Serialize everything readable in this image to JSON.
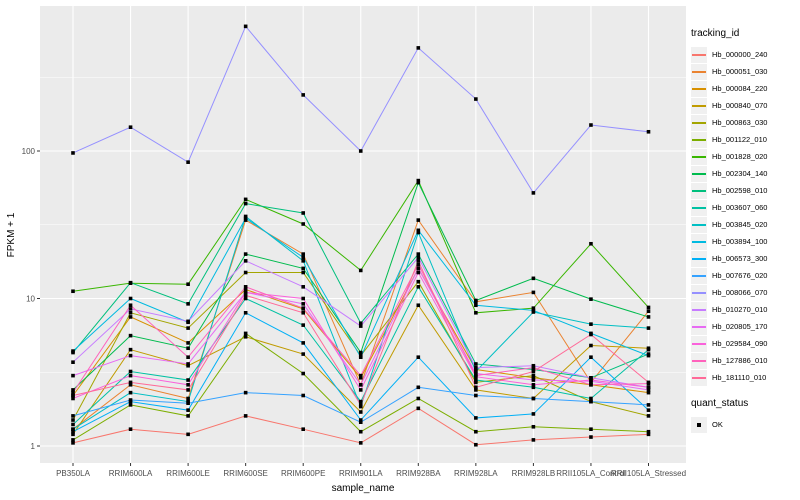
{
  "chart_data": {
    "type": "line",
    "title": "",
    "xlabel": "sample_name",
    "ylabel": "FPKM + 1",
    "y_scale": "log10",
    "y_ticks": [
      1,
      10,
      100
    ],
    "y_tick_labels": [
      "1",
      "10",
      "100"
    ],
    "y_minor_breaks": [
      3.162,
      31.62,
      316.2
    ],
    "ylim": [
      0.85,
      950
    ],
    "grid": "on",
    "legend_position": "right",
    "legend_title": "tracking_id",
    "legend2_title": "quant_status",
    "legend2_items": [
      {
        "label": "OK",
        "marker": "black-square"
      }
    ],
    "marker": "black-square",
    "colors": {
      "panel_bg": "#EBEBEB",
      "grid": "#FFFFFF",
      "marker": "#000000",
      "tick_text": "#4d4d4d",
      "axis_tick": "#333333",
      "legend_key_bg": "#F0F0F0"
    },
    "x_categories": [
      "PB350LA",
      "RRIM600LA",
      "RRIM600LE",
      "RRIM600SE",
      "RRIM600PE",
      "RRIM901LA",
      "RRIM928BA",
      "RRIM928LA",
      "RRIM928LB",
      "RRII105LA_Control",
      "RRII105LA_Stressed"
    ],
    "series": [
      {
        "name": "Hb_000000_240",
        "color": "#F8766D",
        "values": [
          1.05,
          1.3,
          1.2,
          1.6,
          1.3,
          1.05,
          1.8,
          1.02,
          1.1,
          1.15,
          1.2
        ]
      },
      {
        "name": "Hb_000051_030",
        "color": "#EA8331",
        "values": [
          1.3,
          2.6,
          2.1,
          34,
          20,
          2.6,
          34,
          9.5,
          11,
          2.7,
          8.2
        ]
      },
      {
        "name": "Hb_000084_220",
        "color": "#D89000",
        "values": [
          2.2,
          7.5,
          5.0,
          11.5,
          8.5,
          2.9,
          16,
          3.3,
          2.9,
          2.6,
          2.3
        ]
      },
      {
        "name": "Hb_000840_070",
        "color": "#C09B00",
        "values": [
          1.2,
          4.5,
          3.5,
          5.5,
          4.2,
          1.7,
          9.0,
          2.4,
          2.1,
          4.8,
          4.6
        ]
      },
      {
        "name": "Hb_000863_030",
        "color": "#A3A500",
        "values": [
          1.5,
          8.0,
          6.3,
          15,
          15,
          4.1,
          13,
          2.7,
          3.0,
          2.0,
          1.6
        ]
      },
      {
        "name": "Hb_001122_010",
        "color": "#7CAE00",
        "values": [
          1.1,
          1.9,
          1.6,
          5.8,
          3.1,
          1.25,
          2.1,
          1.25,
          1.35,
          1.3,
          1.25
        ]
      },
      {
        "name": "Hb_001828_020",
        "color": "#39B600",
        "values": [
          11.2,
          12.7,
          12.5,
          47,
          32,
          15.5,
          63,
          8.0,
          8.6,
          23.5,
          8.7
        ]
      },
      {
        "name": "Hb_002304_140",
        "color": "#00BB4E",
        "values": [
          2.4,
          5.6,
          4.6,
          20,
          16,
          4.3,
          61,
          9.7,
          13.7,
          9.9,
          7.5
        ]
      },
      {
        "name": "Hb_002598_010",
        "color": "#00BF7D",
        "values": [
          4.3,
          12.8,
          9.2,
          44,
          38,
          6.8,
          20,
          3.6,
          3.3,
          2.9,
          4.2
        ]
      },
      {
        "name": "Hb_003607_060",
        "color": "#00C1A3",
        "values": [
          1.4,
          3.2,
          2.8,
          10,
          6.6,
          2.0,
          12,
          2.8,
          2.5,
          2.1,
          4.5
        ]
      },
      {
        "name": "Hb_003845_020",
        "color": "#00BFC4",
        "values": [
          1.3,
          2.3,
          2.0,
          36,
          18,
          1.85,
          28,
          3.2,
          8.1,
          6.7,
          6.3
        ]
      },
      {
        "name": "Hb_003894_100",
        "color": "#00BAE0",
        "values": [
          4.4,
          10,
          6.9,
          35,
          19,
          4.0,
          29,
          9.0,
          8.3,
          5.8,
          4.1
        ]
      },
      {
        "name": "Hb_006573_300",
        "color": "#00B0F6",
        "values": [
          1.25,
          2.0,
          1.75,
          8.0,
          5.0,
          1.5,
          4.0,
          1.55,
          1.65,
          4.0,
          1.75
        ]
      },
      {
        "name": "Hb_007676_020",
        "color": "#35A2FF",
        "values": [
          1.6,
          2.05,
          1.95,
          2.3,
          2.2,
          1.45,
          2.5,
          2.2,
          2.1,
          2.0,
          1.9
        ]
      },
      {
        "name": "Hb_008066_070",
        "color": "#9590FF",
        "values": [
          97,
          145,
          84,
          700,
          240,
          100,
          500,
          225,
          52,
          150,
          135
        ]
      },
      {
        "name": "Hb_010270_010",
        "color": "#C77CFF",
        "values": [
          3.7,
          8.5,
          7.0,
          18,
          12,
          6.5,
          19,
          3.4,
          3.5,
          2.9,
          2.5
        ]
      },
      {
        "name": "Hb_020805_170",
        "color": "#E76BF3",
        "values": [
          3.0,
          4.1,
          3.6,
          11,
          9.2,
          2.6,
          16,
          3.1,
          2.8,
          2.75,
          2.4
        ]
      },
      {
        "name": "Hb_029584_090",
        "color": "#FA62DB",
        "values": [
          2.1,
          3.0,
          2.6,
          11,
          10,
          2.4,
          15,
          2.95,
          2.6,
          2.8,
          2.5
        ]
      },
      {
        "name": "Hb_127886_010",
        "color": "#FF62BC",
        "values": [
          2.3,
          9.0,
          4.0,
          12,
          8.6,
          3.0,
          17,
          3.0,
          3.4,
          2.6,
          2.65
        ]
      },
      {
        "name": "Hb_181110_010",
        "color": "#FF6A98",
        "values": [
          2.2,
          2.7,
          2.4,
          10.5,
          8.0,
          1.9,
          18,
          2.5,
          3.2,
          5.7,
          2.7
        ]
      }
    ]
  }
}
